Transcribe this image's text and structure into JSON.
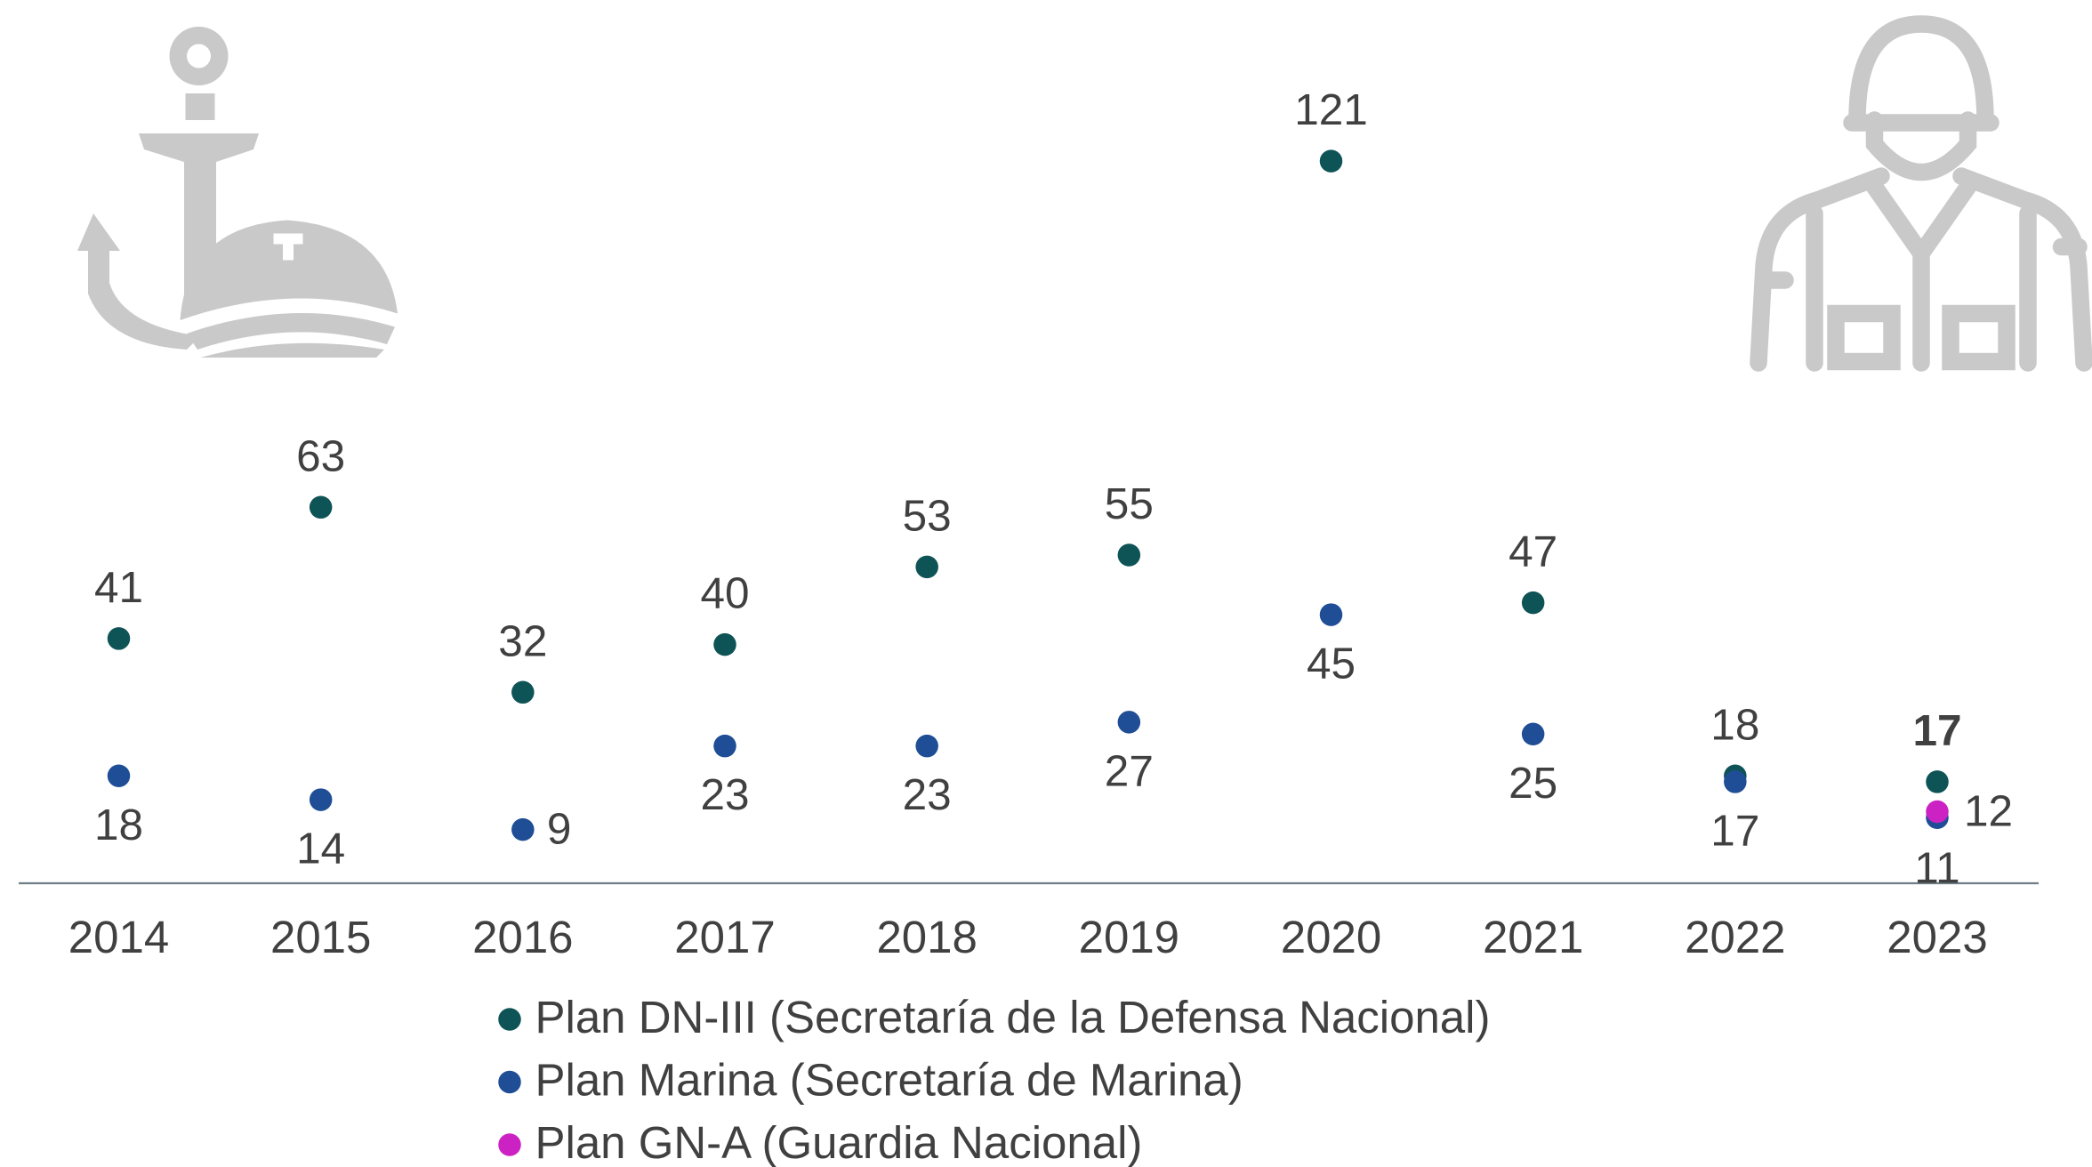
{
  "chart_data": {
    "type": "scatter",
    "categories": [
      "2014",
      "2015",
      "2016",
      "2017",
      "2018",
      "2019",
      "2020",
      "2021",
      "2022",
      "2023"
    ],
    "series": [
      {
        "name": "Plan DN-III (Secretaría de la Defensa Nacional)",
        "color": "#0e5356",
        "values": [
          41,
          63,
          32,
          40,
          53,
          55,
          121,
          47,
          18,
          17
        ]
      },
      {
        "name": "Plan Marina (Secretaría de Marina)",
        "color": "#1f4d96",
        "values": [
          18,
          14,
          9,
          23,
          23,
          27,
          45,
          25,
          17,
          11
        ]
      },
      {
        "name": "Plan GN-A (Guardia Nacional)",
        "color": "#cc22c4",
        "values": [
          null,
          null,
          null,
          null,
          null,
          null,
          null,
          null,
          null,
          12
        ]
      }
    ],
    "ylim": [
      0,
      148
    ],
    "legend": "bottom"
  }
}
